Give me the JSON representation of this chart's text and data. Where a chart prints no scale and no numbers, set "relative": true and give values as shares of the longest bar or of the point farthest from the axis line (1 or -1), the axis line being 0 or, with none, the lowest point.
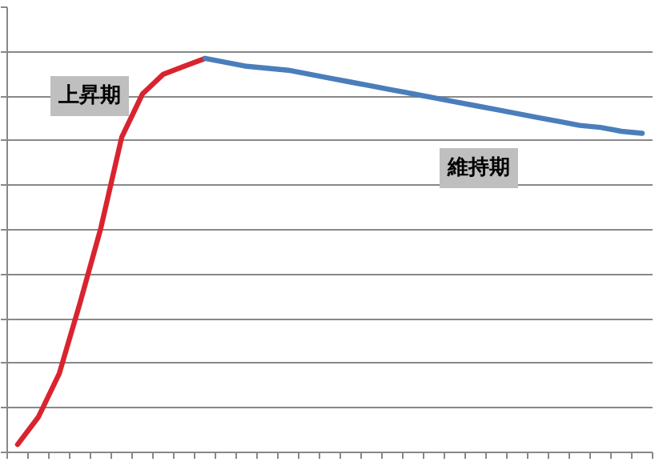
{
  "chart_data": {
    "type": "line",
    "relative": true,
    "grid": "y",
    "categories": [
      null,
      null,
      null,
      null,
      null,
      null,
      null,
      null,
      null,
      null,
      null,
      null,
      null,
      null,
      null,
      null,
      null,
      null,
      null,
      null,
      null,
      null,
      null,
      null,
      null,
      null,
      null,
      null,
      null,
      null,
      null
    ],
    "series": [
      {
        "color": "#d9242f",
        "values": [
          0.02,
          0.09,
          0.2,
          0.38,
          0.57,
          0.8,
          0.91,
          0.96,
          0.98,
          1.0,
          null,
          null,
          null,
          null,
          null,
          null,
          null,
          null,
          null,
          null,
          null,
          null,
          null,
          null,
          null,
          null,
          null,
          null,
          null,
          null,
          null
        ]
      },
      {
        "color": "#4a7ebb",
        "values": [
          null,
          null,
          null,
          null,
          null,
          null,
          null,
          null,
          null,
          1.0,
          0.99,
          0.98,
          0.975,
          0.97,
          0.96,
          0.95,
          0.94,
          0.93,
          0.92,
          0.91,
          0.9,
          0.89,
          0.88,
          0.87,
          0.86,
          0.85,
          0.84,
          0.83,
          0.825,
          0.815,
          0.81
        ]
      }
    ],
    "annotations": [
      "上昇期",
      "維持期"
    ]
  }
}
